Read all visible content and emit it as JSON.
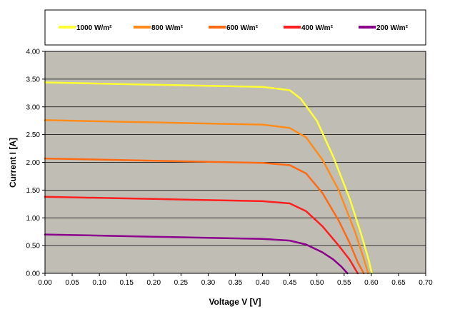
{
  "chart_data": {
    "type": "line",
    "title": "",
    "xlabel": "Voltage V [V]",
    "ylabel": "Current I [A]",
    "xlim": [
      0,
      0.7
    ],
    "ylim": [
      0,
      4
    ],
    "x_ticks": [
      "0.00",
      "0.05",
      "0.10",
      "0.15",
      "0.20",
      "0.25",
      "0.30",
      "0.35",
      "0.40",
      "0.45",
      "0.50",
      "0.55",
      "0.60",
      "0.65",
      "0.70"
    ],
    "y_ticks": [
      "0.00",
      "0.50",
      "1.00",
      "1.50",
      "2.00",
      "2.50",
      "3.00",
      "3.50",
      "4.00"
    ],
    "grid": "horizontal",
    "legend_position": "top",
    "plot_background": "#c0bdb5",
    "series": [
      {
        "name": "1000 W/m²",
        "color": "#ffff33",
        "points": [
          [
            0,
            3.44
          ],
          [
            0.1,
            3.42
          ],
          [
            0.2,
            3.4
          ],
          [
            0.3,
            3.38
          ],
          [
            0.4,
            3.36
          ],
          [
            0.45,
            3.3
          ],
          [
            0.47,
            3.15
          ],
          [
            0.5,
            2.75
          ],
          [
            0.53,
            2.1
          ],
          [
            0.56,
            1.35
          ],
          [
            0.58,
            0.75
          ],
          [
            0.595,
            0.25
          ],
          [
            0.601,
            0
          ]
        ]
      },
      {
        "name": "800 W/m²",
        "color": "#ff8c1a",
        "points": [
          [
            0,
            2.76
          ],
          [
            0.1,
            2.74
          ],
          [
            0.2,
            2.72
          ],
          [
            0.3,
            2.7
          ],
          [
            0.4,
            2.68
          ],
          [
            0.45,
            2.62
          ],
          [
            0.48,
            2.45
          ],
          [
            0.51,
            2.05
          ],
          [
            0.54,
            1.5
          ],
          [
            0.57,
            0.75
          ],
          [
            0.585,
            0.3
          ],
          [
            0.594,
            0
          ]
        ]
      },
      {
        "name": "600 W/m²",
        "color": "#ff6a13",
        "points": [
          [
            0,
            2.07
          ],
          [
            0.1,
            2.05
          ],
          [
            0.2,
            2.03
          ],
          [
            0.3,
            2.01
          ],
          [
            0.4,
            1.99
          ],
          [
            0.45,
            1.95
          ],
          [
            0.48,
            1.8
          ],
          [
            0.51,
            1.45
          ],
          [
            0.54,
            0.95
          ],
          [
            0.56,
            0.55
          ],
          [
            0.575,
            0.2
          ],
          [
            0.586,
            0
          ]
        ]
      },
      {
        "name": "400 W/m²",
        "color": "#ff1f1f",
        "points": [
          [
            0,
            1.38
          ],
          [
            0.1,
            1.36
          ],
          [
            0.2,
            1.34
          ],
          [
            0.3,
            1.32
          ],
          [
            0.4,
            1.3
          ],
          [
            0.45,
            1.26
          ],
          [
            0.48,
            1.12
          ],
          [
            0.51,
            0.85
          ],
          [
            0.54,
            0.5
          ],
          [
            0.56,
            0.25
          ],
          [
            0.575,
            0
          ]
        ]
      },
      {
        "name": "200 W/m²",
        "color": "#8b008b",
        "points": [
          [
            0,
            0.7
          ],
          [
            0.1,
            0.68
          ],
          [
            0.2,
            0.66
          ],
          [
            0.3,
            0.64
          ],
          [
            0.4,
            0.62
          ],
          [
            0.45,
            0.59
          ],
          [
            0.48,
            0.52
          ],
          [
            0.51,
            0.38
          ],
          [
            0.53,
            0.25
          ],
          [
            0.545,
            0.12
          ],
          [
            0.556,
            0
          ]
        ]
      }
    ]
  }
}
